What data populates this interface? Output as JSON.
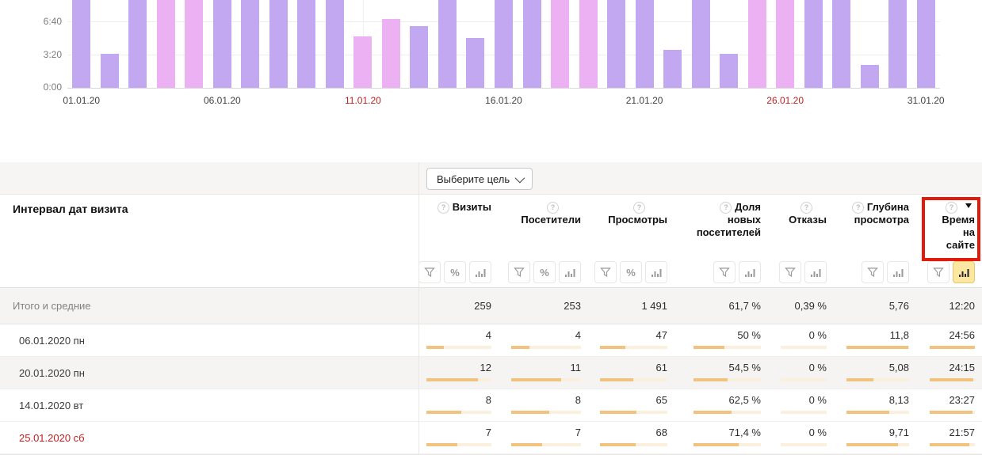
{
  "colors": {
    "bar_weekday": "#c1a8f0",
    "bar_weekend": "#ecb1f3",
    "table_bar_fill": "#f2c37e",
    "table_bar_track": "#fbf0dd",
    "red_text": "#c21f1f",
    "annotation_red": "#e11a0c",
    "active_filter_bg": "#fbe7a1"
  },
  "chart_data": {
    "type": "bar",
    "metric": "Время на сайте",
    "ylabel": "",
    "xlabel": "",
    "y_axis_ticks": [
      "0:00",
      "3:20",
      "6:40"
    ],
    "y_tick_seconds": [
      0,
      200,
      400
    ],
    "clipped_above_seconds": 555,
    "x_axis_ticks": [
      {
        "label": "01.01.20",
        "day": 1,
        "red": false
      },
      {
        "label": "06.01.20",
        "day": 6,
        "red": false
      },
      {
        "label": "11.01.20",
        "day": 11,
        "red": true
      },
      {
        "label": "16.01.20",
        "day": 16,
        "red": false
      },
      {
        "label": "21.01.20",
        "day": 21,
        "red": false
      },
      {
        "label": "26.01.20",
        "day": 26,
        "red": true
      },
      {
        "label": "31.01.20",
        "day": 31,
        "red": false
      }
    ],
    "days": [
      {
        "date": "01.01.20",
        "weekend": false,
        "seconds": null,
        "display": null,
        "clipped": true
      },
      {
        "date": "02.01.20",
        "weekend": false,
        "seconds": 207,
        "display": "3:27",
        "clipped": false
      },
      {
        "date": "03.01.20",
        "weekend": false,
        "seconds": null,
        "display": null,
        "clipped": true
      },
      {
        "date": "04.01.20",
        "weekend": true,
        "seconds": null,
        "display": null,
        "clipped": true
      },
      {
        "date": "05.01.20",
        "weekend": true,
        "seconds": null,
        "display": null,
        "clipped": true
      },
      {
        "date": "06.01.20",
        "weekend": false,
        "seconds": null,
        "display": null,
        "clipped": true
      },
      {
        "date": "07.01.20",
        "weekend": false,
        "seconds": null,
        "display": null,
        "clipped": true
      },
      {
        "date": "08.01.20",
        "weekend": false,
        "seconds": null,
        "display": null,
        "clipped": true
      },
      {
        "date": "09.01.20",
        "weekend": false,
        "seconds": null,
        "display": null,
        "clipped": true
      },
      {
        "date": "10.01.20",
        "weekend": false,
        "seconds": null,
        "display": null,
        "clipped": true
      },
      {
        "date": "11.01.20",
        "weekend": true,
        "seconds": 313,
        "display": "5:13",
        "clipped": false
      },
      {
        "date": "12.01.20",
        "weekend": true,
        "seconds": 419,
        "display": "6:59",
        "clipped": false
      },
      {
        "date": "13.01.20",
        "weekend": false,
        "seconds": 376,
        "display": "6:16",
        "clipped": false
      },
      {
        "date": "14.01.20",
        "weekend": false,
        "seconds": null,
        "display": null,
        "clipped": true
      },
      {
        "date": "15.01.20",
        "weekend": false,
        "seconds": 304,
        "display": "5:04",
        "clipped": false
      },
      {
        "date": "16.01.20",
        "weekend": false,
        "seconds": null,
        "display": null,
        "clipped": true
      },
      {
        "date": "17.01.20",
        "weekend": false,
        "seconds": null,
        "display": null,
        "clipped": true
      },
      {
        "date": "18.01.20",
        "weekend": true,
        "seconds": null,
        "display": null,
        "clipped": true
      },
      {
        "date": "19.01.20",
        "weekend": true,
        "seconds": null,
        "display": null,
        "clipped": true
      },
      {
        "date": "20.01.20",
        "weekend": false,
        "seconds": null,
        "display": null,
        "clipped": true
      },
      {
        "date": "21.01.20",
        "weekend": false,
        "seconds": null,
        "display": null,
        "clipped": true
      },
      {
        "date": "22.01.20",
        "weekend": false,
        "seconds": 231,
        "display": "3:51",
        "clipped": false
      },
      {
        "date": "23.01.20",
        "weekend": false,
        "seconds": null,
        "display": null,
        "clipped": true
      },
      {
        "date": "24.01.20",
        "weekend": false,
        "seconds": 207,
        "display": "3:27",
        "clipped": false
      },
      {
        "date": "25.01.20",
        "weekend": true,
        "seconds": null,
        "display": null,
        "clipped": true
      },
      {
        "date": "26.01.20",
        "weekend": true,
        "seconds": null,
        "display": null,
        "clipped": true
      },
      {
        "date": "27.01.20",
        "weekend": false,
        "seconds": null,
        "display": null,
        "clipped": true
      },
      {
        "date": "28.01.20",
        "weekend": false,
        "seconds": null,
        "display": null,
        "clipped": true
      },
      {
        "date": "29.01.20",
        "weekend": false,
        "seconds": 140,
        "display": "2:20",
        "clipped": false
      },
      {
        "date": "30.01.20",
        "weekend": false,
        "seconds": null,
        "display": null,
        "clipped": true
      },
      {
        "date": "31.01.20",
        "weekend": false,
        "seconds": null,
        "display": null,
        "clipped": true
      }
    ]
  },
  "table": {
    "goal_button_label": "Выберите цель",
    "row_header": "Интервал дат визита",
    "columns": [
      {
        "id": "visits",
        "lines": [
          "Визиты"
        ],
        "icon_mode": "inline",
        "sort": false,
        "filters": [
          "funnel",
          "percent",
          "bars"
        ]
      },
      {
        "id": "visitors",
        "lines": [
          "Посетители"
        ],
        "icon_mode": "above",
        "sort": false,
        "filters": [
          "funnel",
          "percent",
          "bars"
        ]
      },
      {
        "id": "views",
        "lines": [
          "Просмотры"
        ],
        "icon_mode": "above",
        "sort": false,
        "filters": [
          "funnel",
          "percent",
          "bars"
        ]
      },
      {
        "id": "newshare",
        "lines": [
          "Доля",
          "новых",
          "посетителей"
        ],
        "icon_mode": "inline",
        "sort": false,
        "filters": [
          "funnel",
          "bars"
        ]
      },
      {
        "id": "bounce",
        "lines": [
          "Отказы"
        ],
        "icon_mode": "above",
        "sort": false,
        "filters": [
          "funnel",
          "bars"
        ]
      },
      {
        "id": "depth",
        "lines": [
          "Глубина",
          "просмотра"
        ],
        "icon_mode": "inline",
        "sort": false,
        "filters": [
          "funnel",
          "bars"
        ]
      },
      {
        "id": "time",
        "lines": [
          "Время",
          "на",
          "сайте"
        ],
        "icon_mode": "above",
        "sort": true,
        "filters": [
          "funnel",
          "bars_active"
        ]
      }
    ],
    "totals": {
      "label": "Итого и средние",
      "values": [
        "259",
        "253",
        "1 491",
        "61,7 %",
        "0,39 %",
        "5,76",
        "12:20"
      ]
    },
    "rows": [
      {
        "label": "06.01.2020 пн",
        "red": false,
        "values": [
          "4",
          "4",
          "47",
          "50 %",
          "0 %",
          "11,8",
          "24:56"
        ],
        "bar_pct": [
          27,
          26,
          38,
          46,
          0,
          99,
          100
        ]
      },
      {
        "label": "20.01.2020 пн",
        "red": false,
        "values": [
          "12",
          "11",
          "61",
          "54,5 %",
          "0 %",
          "5,08",
          "24:15"
        ],
        "bar_pct": [
          79,
          72,
          49,
          51,
          0,
          43,
          97
        ]
      },
      {
        "label": "14.01.2020 вт",
        "red": false,
        "values": [
          "8",
          "8",
          "65",
          "62,5 %",
          "0 %",
          "8,13",
          "23:27"
        ],
        "bar_pct": [
          54,
          54,
          54,
          57,
          0,
          68,
          94
        ]
      },
      {
        "label": "25.01.2020 сб",
        "red": true,
        "values": [
          "7",
          "7",
          "68",
          "71,4 %",
          "0 %",
          "9,71",
          "21:57"
        ],
        "bar_pct": [
          48,
          44,
          53,
          67,
          0,
          82,
          88
        ]
      }
    ]
  },
  "annotation": {
    "target": "Время на сайте header"
  }
}
